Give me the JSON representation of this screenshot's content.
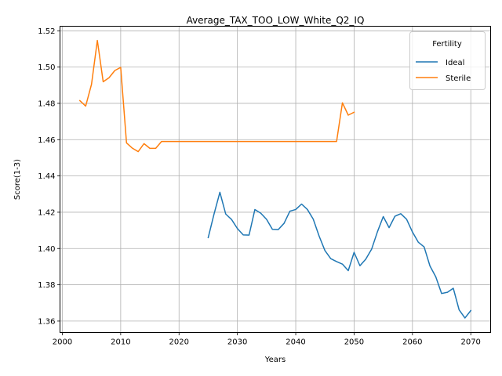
{
  "chart_data": {
    "type": "line",
    "title": "Average_TAX_TOO_LOW_White_Q2_IQ",
    "xlabel": "Years",
    "ylabel": "Score(1-3)",
    "xlim": [
      1999.6,
      2073.4
    ],
    "ylim": [
      1.3537,
      1.5225
    ],
    "xticks": [
      2000,
      2010,
      2020,
      2030,
      2040,
      2050,
      2060,
      2070
    ],
    "yticks": [
      1.36,
      1.38,
      1.4,
      1.42,
      1.44,
      1.46,
      1.48,
      1.5,
      1.52
    ],
    "ytick_labels": [
      "1.36",
      "1.38",
      "1.40",
      "1.42",
      "1.44",
      "1.46",
      "1.48",
      "1.50",
      "1.52"
    ],
    "grid": true,
    "legend": {
      "title": "Fertility",
      "placement": "top-right"
    },
    "series": [
      {
        "name": "Ideal",
        "color": "#1f77b4",
        "x": [
          2025,
          2026,
          2027,
          2028,
          2029,
          2030,
          2031,
          2032,
          2033,
          2034,
          2035,
          2036,
          2037,
          2038,
          2039,
          2040,
          2041,
          2042,
          2043,
          2044,
          2045,
          2046,
          2047,
          2048,
          2049,
          2050,
          2051,
          2052,
          2053,
          2054,
          2055,
          2056,
          2057,
          2058,
          2059,
          2060,
          2061,
          2062,
          2063,
          2064,
          2065,
          2066,
          2067,
          2068,
          2069,
          2070
        ],
        "y": [
          1.406,
          1.419,
          1.431,
          1.419,
          1.416,
          1.411,
          1.4075,
          1.4074,
          1.4215,
          1.4195,
          1.4161,
          1.4106,
          1.4104,
          1.4139,
          1.4206,
          1.4215,
          1.4245,
          1.4215,
          1.4162,
          1.4069,
          1.3989,
          1.3944,
          1.3928,
          1.3914,
          1.3878,
          1.3979,
          1.3905,
          1.3941,
          1.3996,
          1.4092,
          1.4176,
          1.4115,
          1.4178,
          1.4192,
          1.4161,
          1.4091,
          1.4035,
          1.4009,
          1.3904,
          1.3844,
          1.3752,
          1.3759,
          1.3781,
          1.3662,
          1.3617,
          1.3658
        ]
      },
      {
        "name": "Sterile",
        "color": "#ff7f0e",
        "x": [
          2003,
          2004,
          2005,
          2006,
          2007,
          2008,
          2009,
          2010,
          2011,
          2012,
          2013,
          2014,
          2015,
          2016,
          2017,
          2018,
          2019,
          2020,
          2021,
          2022,
          2023,
          2024,
          2025,
          2026,
          2027,
          2028,
          2029,
          2030,
          2031,
          2032,
          2033,
          2034,
          2035,
          2036,
          2037,
          2038,
          2039,
          2040,
          2041,
          2042,
          2043,
          2044,
          2045,
          2046,
          2047,
          2048,
          2049,
          2050
        ],
        "y": [
          1.4815,
          1.4785,
          1.4905,
          1.5147,
          1.4919,
          1.4941,
          1.4981,
          1.4998,
          1.4582,
          1.4553,
          1.4534,
          1.4578,
          1.4552,
          1.4552,
          1.459,
          1.459,
          1.459,
          1.459,
          1.459,
          1.459,
          1.459,
          1.459,
          1.459,
          1.459,
          1.459,
          1.459,
          1.459,
          1.459,
          1.459,
          1.459,
          1.459,
          1.459,
          1.459,
          1.459,
          1.459,
          1.459,
          1.459,
          1.459,
          1.459,
          1.459,
          1.459,
          1.459,
          1.459,
          1.459,
          1.459,
          1.4803,
          1.4735,
          1.4751
        ]
      }
    ]
  }
}
